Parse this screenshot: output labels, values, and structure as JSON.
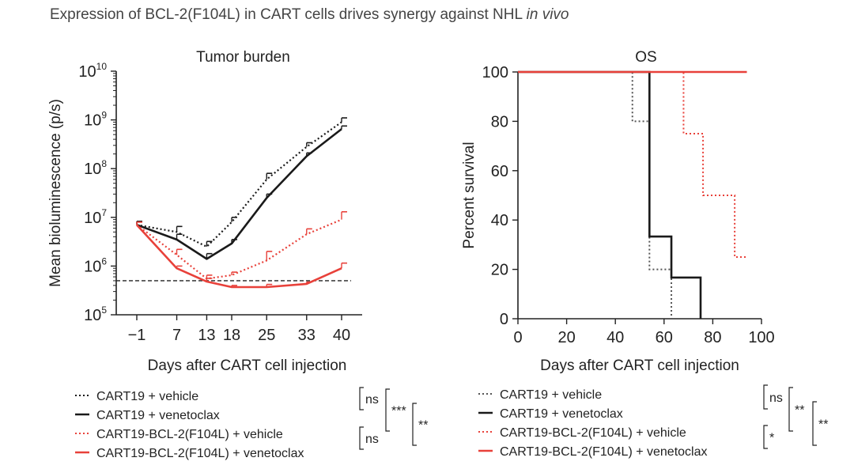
{
  "figure_title": {
    "main": "Expression of BCL-2(F104L) in CART cells drives synergy against NHL",
    "italic": "in vivo"
  },
  "colors": {
    "black": "#1a1a1a",
    "red": "#e8413a",
    "grey": "#555555"
  },
  "legend_labels": [
    "CART19 + vehicle",
    "CART19 + venetoclax",
    "CART19-BCL-2(F104L) + vehicle",
    "CART19-BCL-2(F104L) + venetoclax"
  ],
  "chart_data": [
    {
      "type": "line",
      "title": "Tumor burden",
      "xlabel": "Days after CART cell injection",
      "ylabel": "Mean bioluminescence (p/s)",
      "y_scale": "log10",
      "ylim": [
        100000,
        10000000000
      ],
      "y_tick_labels": [
        {
          "base": "10",
          "exp": "5"
        },
        {
          "base": "10",
          "exp": "6"
        },
        {
          "base": "10",
          "exp": "7"
        },
        {
          "base": "10",
          "exp": "8"
        },
        {
          "base": "10",
          "exp": "9"
        },
        {
          "base": "10",
          "exp": "10"
        }
      ],
      "x": [
        -1,
        7,
        13,
        18,
        25,
        33,
        40
      ],
      "x_tick_labels": [
        "−1",
        "7",
        "13",
        "18",
        "25",
        "33",
        "40"
      ],
      "reference_line": {
        "value": 500000,
        "style": "dashed"
      },
      "series": [
        {
          "name": "CART19 + vehicle",
          "color": "#1a1a1a",
          "style": "dotted",
          "values": [
            7000000,
            5000000,
            2500000,
            8000000,
            60000000,
            280000000,
            900000000
          ],
          "error_upper": [
            8300000,
            6500000,
            3200000,
            10000000,
            80000000,
            340000000,
            1100000000
          ]
        },
        {
          "name": "CART19 + venetoclax",
          "color": "#1a1a1a",
          "style": "solid",
          "values": [
            7000000,
            3500000,
            1400000,
            2900000,
            25000000,
            180000000,
            650000000
          ],
          "error_upper": [
            8000000,
            4500000,
            1800000,
            3500000,
            30000000,
            210000000,
            750000000
          ]
        },
        {
          "name": "CART19-BCL-2(F104L) + vehicle",
          "color": "#e8413a",
          "style": "dotted",
          "values": [
            7000000,
            1700000,
            550000,
            650000,
            1300000,
            4500000,
            9000000
          ],
          "error_upper": [
            8000000,
            2200000,
            650000,
            750000,
            2000000,
            5800000,
            13000000
          ]
        },
        {
          "name": "CART19-BCL-2(F104L) + venetoclax",
          "color": "#e8413a",
          "style": "solid",
          "values": [
            7000000,
            900000,
            480000,
            370000,
            370000,
            430000,
            900000
          ],
          "error_upper": [
            8000000,
            1000000,
            560000,
            400000,
            420000,
            470000,
            1150000
          ]
        }
      ],
      "significance": [
        {
          "label": "ns",
          "pair": "CART19 + vehicle vs CART19 + venetoclax"
        },
        {
          "label": "***",
          "pair": "CART19 + vehicle vs CART19-BCL-2(F104L) + vehicle"
        },
        {
          "label": "**",
          "pair": "CART19 + venetoclax vs CART19-BCL-2(F104L) + venetoclax"
        },
        {
          "label": "ns",
          "pair": "CART19-BCL-2(F104L) + vehicle vs CART19-BCL-2(F104L) + venetoclax"
        }
      ]
    },
    {
      "type": "line",
      "title": "OS",
      "xlabel": "Days after CART cell injection",
      "ylabel": "Percent survival",
      "xlim": [
        0,
        100
      ],
      "ylim": [
        0,
        100
      ],
      "x_ticks": [
        0,
        20,
        40,
        60,
        80,
        100
      ],
      "y_ticks": [
        0,
        20,
        40,
        60,
        80,
        100
      ],
      "series": [
        {
          "name": "CART19 + vehicle",
          "color": "#555555",
          "style": "dotted",
          "step": true,
          "x": [
            0,
            47,
            54,
            63
          ],
          "y": [
            100,
            80,
            20,
            0
          ]
        },
        {
          "name": "CART19 + venetoclax",
          "color": "#1a1a1a",
          "style": "solid",
          "step": true,
          "x": [
            0,
            54,
            63,
            75
          ],
          "y": [
            100,
            33.3,
            16.7,
            0
          ]
        },
        {
          "name": "CART19-BCL-2(F104L) + vehicle",
          "color": "#e8413a",
          "style": "dotted",
          "step": true,
          "x": [
            0,
            68,
            76,
            89,
            94
          ],
          "y": [
            100,
            75,
            50,
            25,
            25
          ]
        },
        {
          "name": "CART19-BCL-2(F104L) + venetoclax",
          "color": "#e8413a",
          "style": "solid",
          "step": true,
          "x": [
            0,
            94
          ],
          "y": [
            100,
            100
          ]
        }
      ],
      "significance": [
        {
          "label": "ns",
          "pair": "CART19 + vehicle vs CART19 + venetoclax"
        },
        {
          "label": "**",
          "pair": "CART19 + vehicle vs CART19-BCL-2(F104L) + vehicle"
        },
        {
          "label": "**",
          "pair": "CART19 + venetoclax vs CART19-BCL-2(F104L) + venetoclax"
        },
        {
          "label": "*",
          "pair": "CART19-BCL-2(F104L) + vehicle vs CART19-BCL-2(F104L) + venetoclax"
        }
      ]
    }
  ]
}
